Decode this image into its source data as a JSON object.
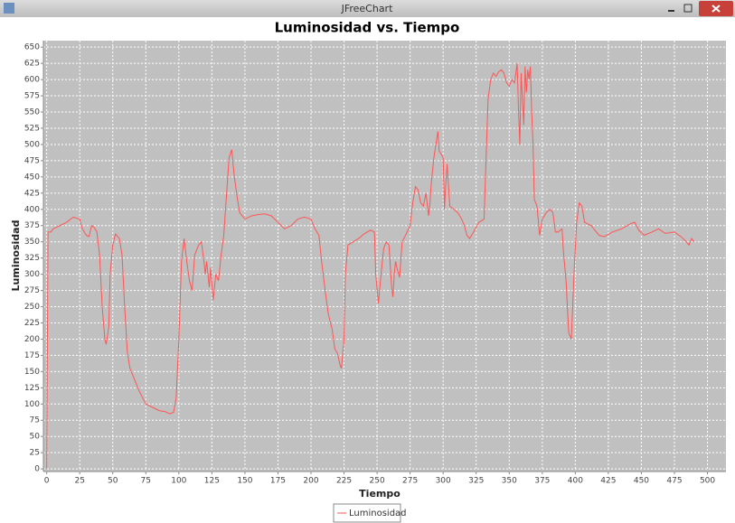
{
  "window": {
    "title": "JFreeChart"
  },
  "chart_data": {
    "type": "line",
    "title": "Luminosidad vs. Tiempo",
    "x_label": "Tiempo",
    "y_label": "Luminosidad",
    "x": [
      0,
      1,
      3,
      5,
      10,
      15,
      20,
      25,
      27,
      30,
      32,
      34,
      36,
      38,
      40,
      42,
      44,
      45,
      47,
      48,
      50,
      52,
      55,
      57,
      59,
      61,
      63,
      66,
      70,
      75,
      80,
      85,
      90,
      93,
      96,
      98,
      100,
      102,
      104,
      106,
      108,
      110,
      112,
      115,
      117,
      119,
      120,
      121,
      123,
      124,
      126,
      128,
      130,
      132,
      134,
      136,
      138,
      140,
      142,
      144,
      146,
      150,
      155,
      160,
      165,
      170,
      175,
      180,
      185,
      190,
      195,
      200,
      203,
      206,
      208,
      211,
      213,
      216,
      218,
      220,
      222,
      223,
      225,
      226,
      228,
      232,
      236,
      240,
      245,
      248,
      249,
      251,
      253,
      255,
      257,
      259,
      261,
      262,
      263,
      264,
      265,
      267,
      269,
      272,
      275,
      277,
      279,
      281,
      283,
      285,
      287,
      289,
      290,
      291,
      293,
      296,
      297,
      300,
      301,
      302,
      303,
      305,
      308,
      311,
      314,
      316,
      318,
      320,
      323,
      327,
      331,
      332,
      334,
      336,
      338,
      340,
      342,
      344,
      346,
      348,
      350,
      352,
      354,
      356,
      357,
      358,
      359,
      360,
      361,
      362,
      363,
      364,
      365,
      366,
      367,
      368,
      369,
      370,
      371,
      373,
      375,
      378,
      381,
      383,
      385,
      387,
      390,
      391,
      393,
      395,
      397,
      399,
      401,
      403,
      405,
      407,
      412,
      418,
      422,
      428,
      435,
      442,
      445,
      448,
      452,
      458,
      463,
      468,
      475,
      480,
      484,
      486,
      488,
      490
    ],
    "series": [
      {
        "name": "Luminosidad",
        "color": "#ff5555",
        "values": [
          0,
          365,
          365,
          370,
          375,
          380,
          388,
          385,
          370,
          360,
          358,
          375,
          372,
          365,
          330,
          250,
          200,
          192,
          220,
          300,
          345,
          362,
          355,
          330,
          250,
          180,
          155,
          140,
          120,
          100,
          95,
          90,
          88,
          85,
          87,
          110,
          200,
          320,
          355,
          320,
          290,
          275,
          330,
          345,
          350,
          320,
          300,
          320,
          280,
          310,
          260,
          300,
          290,
          330,
          360,
          420,
          480,
          492,
          450,
          420,
          395,
          385,
          390,
          392,
          393,
          390,
          380,
          370,
          375,
          385,
          388,
          385,
          370,
          360,
          320,
          270,
          240,
          215,
          185,
          178,
          160,
          155,
          200,
          300,
          345,
          350,
          355,
          362,
          368,
          365,
          300,
          255,
          300,
          340,
          350,
          345,
          280,
          265,
          300,
          320,
          310,
          295,
          350,
          362,
          375,
          410,
          435,
          430,
          410,
          405,
          425,
          390,
          410,
          440,
          480,
          520,
          490,
          480,
          400,
          440,
          470,
          405,
          400,
          395,
          385,
          375,
          360,
          355,
          365,
          380,
          385,
          450,
          570,
          600,
          610,
          605,
          612,
          615,
          610,
          595,
          590,
          600,
          595,
          625,
          555,
          500,
          610,
          570,
          530,
          620,
          580,
          615,
          600,
          620,
          550,
          500,
          415,
          410,
          405,
          360,
          385,
          395,
          400,
          395,
          365,
          365,
          370,
          335,
          290,
          210,
          200,
          300,
          380,
          410,
          405,
          380,
          375,
          360,
          358,
          365,
          370,
          378,
          380,
          368,
          360,
          365,
          370,
          363,
          365,
          358,
          350,
          345,
          355,
          350
        ]
      }
    ],
    "xlim": [
      -2.5,
      514
    ],
    "ylim": [
      -4,
      660
    ],
    "xticks": [
      0,
      25,
      50,
      75,
      100,
      125,
      150,
      175,
      200,
      225,
      250,
      275,
      300,
      325,
      350,
      375,
      400,
      425,
      450,
      475,
      500
    ],
    "yticks": [
      0,
      25,
      50,
      75,
      100,
      125,
      150,
      175,
      200,
      225,
      250,
      275,
      300,
      325,
      350,
      375,
      400,
      425,
      450,
      475,
      500,
      525,
      550,
      575,
      600,
      625,
      650
    ],
    "grid": true,
    "legend": "bottom"
  }
}
